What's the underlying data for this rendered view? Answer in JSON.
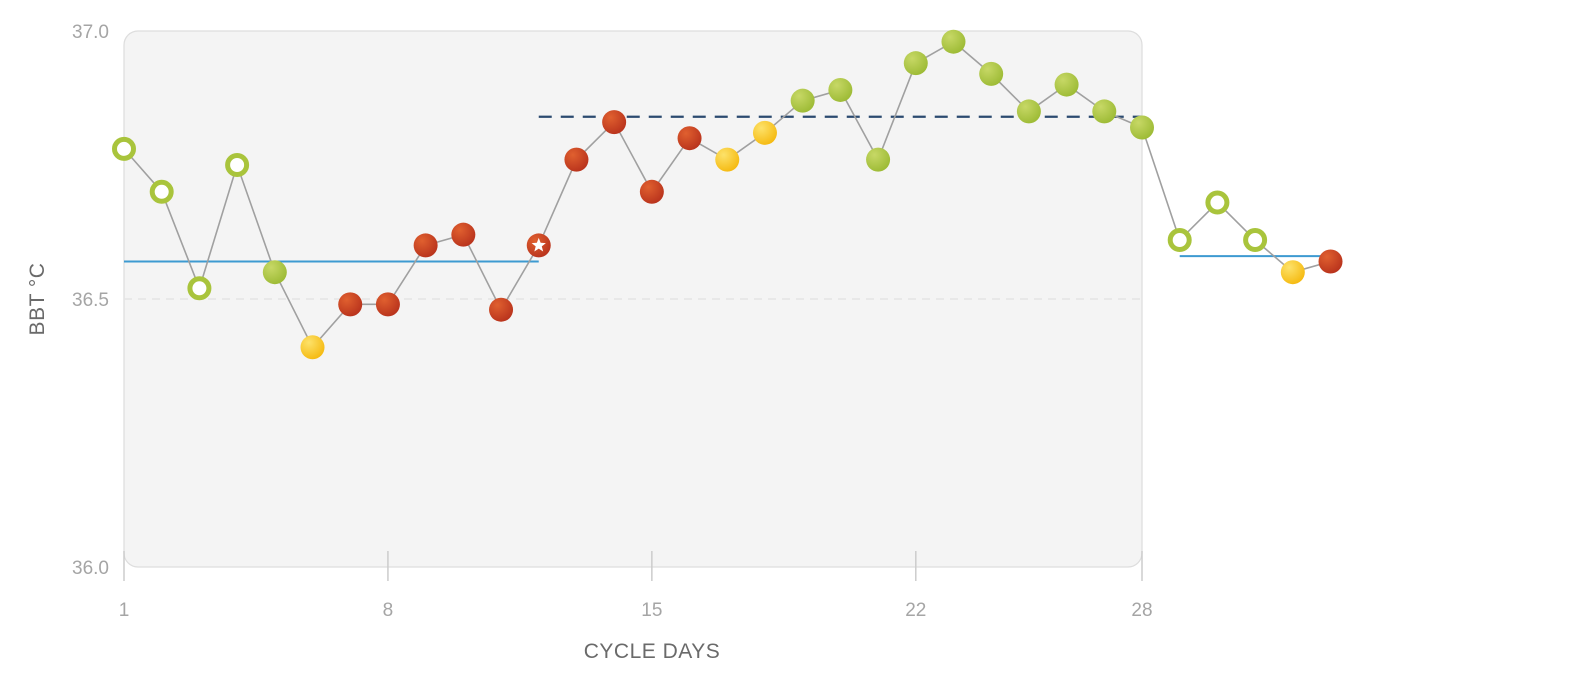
{
  "chart_data": {
    "type": "line",
    "xlabel": "CYCLE DAYS",
    "ylabel": "BBT °C",
    "xlim": [
      1,
      33
    ],
    "ylim": [
      36.0,
      37.0
    ],
    "x_ticks": [
      1,
      8,
      15,
      22,
      28
    ],
    "y_ticks": [
      36.0,
      36.5,
      37.0
    ],
    "y_tick_labels": [
      "36.0",
      "36.5",
      "37.0"
    ],
    "grid": "dashed line at 36.5",
    "shaded_region_days": [
      1,
      28
    ],
    "colors": {
      "red": "#c63b22",
      "yellow": "#f9c720",
      "green": "#a9c43c",
      "line": "#a0a0a0",
      "coverline": "#3d9ad1",
      "dashed_threshold": "#2b4a6f",
      "panel": "#f4f4f4"
    },
    "series": [
      {
        "days": [
          1,
          2,
          3,
          4,
          5,
          6,
          7,
          8,
          9,
          10,
          11,
          12,
          13,
          14,
          15,
          16,
          17,
          18,
          19,
          20,
          21,
          22,
          23,
          24,
          25,
          26,
          27,
          28,
          29,
          30,
          31,
          32,
          33
        ],
        "values": [
          36.78,
          36.7,
          36.52,
          36.75,
          36.55,
          36.41,
          36.49,
          36.49,
          36.6,
          36.62,
          36.48,
          36.6,
          36.76,
          36.83,
          36.7,
          36.8,
          36.76,
          36.81,
          36.87,
          36.89,
          36.76,
          36.94,
          36.98,
          36.92,
          36.85,
          36.9,
          36.85,
          36.82,
          36.61,
          36.68,
          36.61,
          36.55,
          36.57
        ],
        "markers": [
          "green-open",
          "green-open",
          "green-open",
          "green-open",
          "green",
          "yellow",
          "red",
          "red",
          "red",
          "red",
          "red",
          "red-star",
          "red",
          "red",
          "red",
          "red",
          "yellow",
          "yellow",
          "green",
          "green",
          "green",
          "green",
          "green",
          "green",
          "green",
          "green",
          "green",
          "green",
          "green-open",
          "green-open",
          "green-open",
          "yellow",
          "red"
        ]
      }
    ],
    "coverlines": [
      {
        "from": 1,
        "to": 12,
        "value": 36.57
      },
      {
        "from": 29,
        "to": 33,
        "value": 36.58
      }
    ],
    "threshold_line": {
      "from": 12,
      "to": 28,
      "value": 36.84,
      "style": "dashed"
    }
  }
}
